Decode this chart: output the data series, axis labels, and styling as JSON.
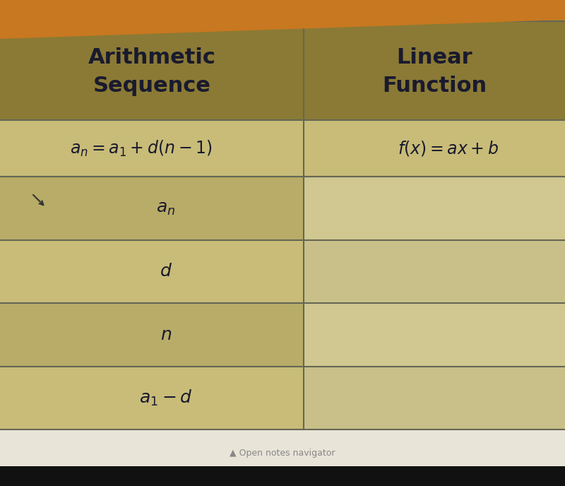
{
  "header_bg": "#8a7a35",
  "header_text_color": "#1a1a2e",
  "row_bg_odd": "#c8bc78",
  "row_bg_even": "#b8ac68",
  "cell_bg_right": "#d8d0a0",
  "border_color": "#666655",
  "outer_bg": "#9a8c40",
  "table_bg": "#b8ac68",
  "orange_bar_color": "#c87820",
  "bottom_area_color": "#e8e4d8",
  "bottom_bar_color": "#111111",
  "bottom_text": "▲ Open notes navigator",
  "col1_header_line1": "Arithmetic",
  "col1_header_line2": "Sequence",
  "col2_header_line1": "Linear",
  "col2_header_line2": "Function",
  "formula_row_col1": "$a_n = a_1 + d(n - 1)$",
  "formula_row_col2": "$f(x) = ax + b$",
  "data_rows_col1": [
    "$a_n$",
    "$d$",
    "$n$",
    "$a_1 - d$"
  ],
  "fig_width": 8.0,
  "fig_height": 6.88
}
